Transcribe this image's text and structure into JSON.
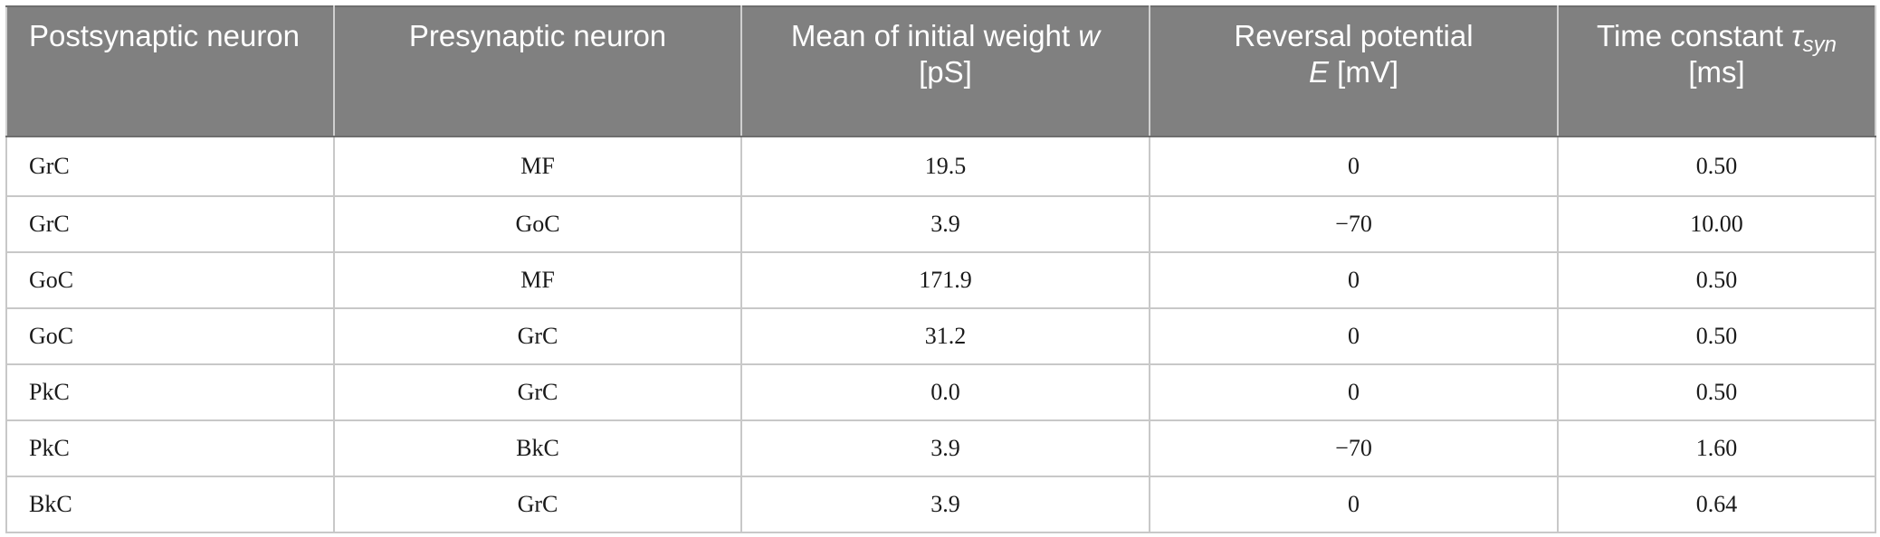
{
  "table": {
    "headers": {
      "col1": "Postsynaptic neuron",
      "col2": "Presynaptic neuron",
      "col3_text": "Mean of initial weight",
      "col3_symbol": "w",
      "col3_unit": "[pS]",
      "col4_text": "Reversal potential",
      "col4_symbol": "E",
      "col4_unit": "[mV]",
      "col5_text": "Time constant",
      "col5_symbol": "τ",
      "col5_subscript": "syn",
      "col5_unit": "[ms]"
    },
    "rows": [
      [
        "GrC",
        "MF",
        "19.5",
        "0",
        "0.50"
      ],
      [
        "GrC",
        "GoC",
        "3.9",
        "−70",
        "10.00"
      ],
      [
        "GoC",
        "MF",
        "171.9",
        "0",
        "0.50"
      ],
      [
        "GoC",
        "GrC",
        "31.2",
        "0",
        "0.50"
      ],
      [
        "PkC",
        "GrC",
        "0.0",
        "0",
        "0.50"
      ],
      [
        "PkC",
        "BkC",
        "3.9",
        "−70",
        "1.60"
      ],
      [
        "BkC",
        "GrC",
        "3.9",
        "0",
        "0.64"
      ]
    ]
  }
}
